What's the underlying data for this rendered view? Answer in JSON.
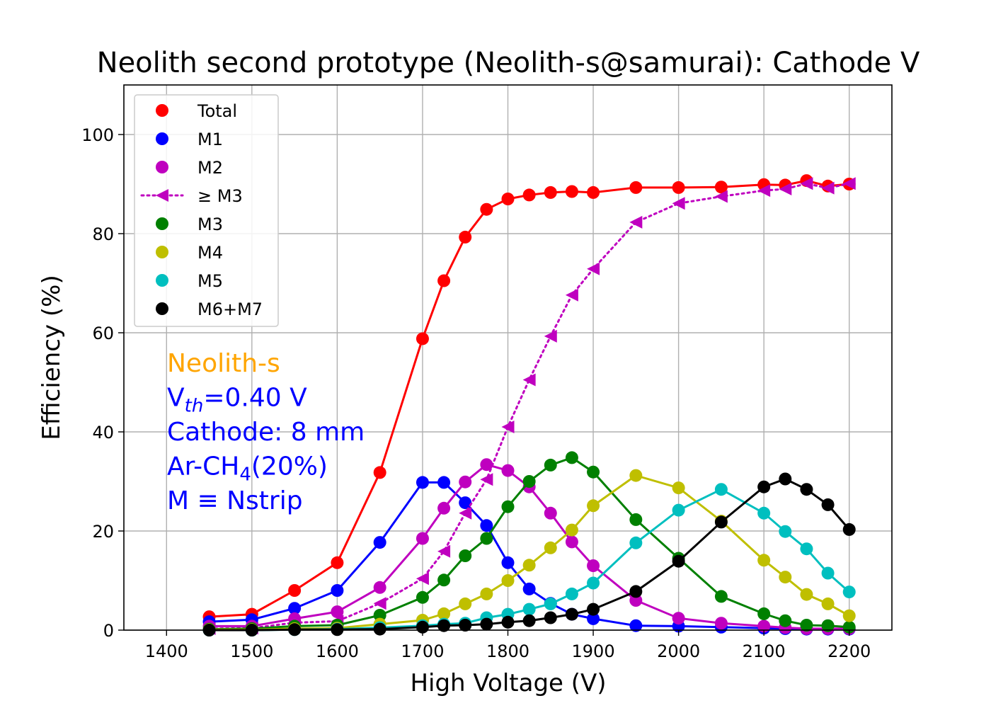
{
  "chart_data": {
    "type": "line",
    "title": "Neolith second prototype (Neolith-s@samurai): Cathode V",
    "xlabel": "High Voltage (V)",
    "ylabel": "Efficiency (%)",
    "xlim": [
      1350,
      2250
    ],
    "ylim": [
      0,
      110
    ],
    "xticks": [
      1400,
      1500,
      1600,
      1700,
      1800,
      1900,
      2000,
      2100,
      2200
    ],
    "yticks": [
      0,
      20,
      40,
      60,
      80,
      100
    ],
    "grid": true,
    "legend_position": "top-left",
    "x": [
      1450,
      1500,
      1550,
      1600,
      1650,
      1700,
      1725,
      1750,
      1775,
      1800,
      1825,
      1850,
      1875,
      1900,
      1950,
      2000,
      2050,
      2100,
      2125,
      2150,
      2175,
      2200
    ],
    "series": [
      {
        "name": "Total",
        "color": "#ff0000",
        "marker": "circle",
        "linestyle": "solid",
        "values": [
          2.7,
          3.2,
          8.0,
          13.6,
          31.8,
          58.8,
          70.5,
          79.3,
          84.9,
          87.0,
          87.8,
          88.3,
          88.5,
          88.3,
          89.3,
          89.3,
          89.4,
          89.9,
          89.8,
          90.7,
          89.6,
          90.0
        ]
      },
      {
        "name": "M1",
        "color": "#0000ff",
        "marker": "circle",
        "linestyle": "solid",
        "values": [
          1.7,
          2.1,
          4.4,
          8.0,
          17.7,
          29.8,
          29.8,
          25.7,
          21.1,
          13.6,
          8.3,
          5.4,
          3.2,
          2.3,
          0.9,
          0.8,
          0.6,
          0.4,
          0.3,
          0.2,
          0.2,
          0.2
        ]
      },
      {
        "name": "M2",
        "color": "#bf00bf",
        "marker": "circle",
        "linestyle": "solid",
        "values": [
          0.8,
          0.8,
          2.3,
          3.7,
          8.6,
          18.5,
          24.6,
          29.9,
          33.4,
          32.2,
          28.9,
          23.6,
          17.8,
          13.0,
          6.0,
          2.4,
          1.4,
          0.8,
          0.5,
          0.3,
          0.3,
          0.3
        ]
      },
      {
        "name": "≥ M3",
        "color": "#bf00bf",
        "marker": "triangle-left",
        "linestyle": "dotted",
        "values": [
          0.3,
          0.4,
          1.5,
          1.8,
          5.4,
          10.4,
          15.9,
          23.6,
          30.4,
          41.0,
          50.5,
          59.3,
          67.6,
          72.9,
          82.3,
          86.1,
          87.5,
          88.7,
          89.0,
          90.1,
          89.2,
          90.1
        ]
      },
      {
        "name": "M3",
        "color": "#008000",
        "marker": "circle",
        "linestyle": "solid",
        "values": [
          0.2,
          0.3,
          0.8,
          1.0,
          3.0,
          6.6,
          10.1,
          15.0,
          18.5,
          24.9,
          30.0,
          33.3,
          34.8,
          31.9,
          22.3,
          14.5,
          6.8,
          3.3,
          1.9,
          1.0,
          0.9,
          0.6
        ]
      },
      {
        "name": "M4",
        "color": "#bfbf00",
        "marker": "circle",
        "linestyle": "solid",
        "values": [
          0.1,
          0.1,
          0.3,
          0.4,
          1.2,
          2.0,
          3.3,
          5.3,
          7.3,
          10.0,
          13.1,
          16.6,
          20.2,
          25.1,
          31.2,
          28.7,
          22.0,
          14.1,
          10.7,
          7.2,
          5.3,
          2.9
        ]
      },
      {
        "name": "M5",
        "color": "#00bfbf",
        "marker": "circle",
        "linestyle": "solid",
        "values": [
          0.0,
          0.0,
          0.1,
          0.2,
          0.5,
          0.9,
          1.2,
          1.4,
          2.5,
          3.2,
          4.2,
          5.3,
          7.3,
          9.5,
          17.6,
          24.2,
          28.4,
          23.6,
          19.9,
          16.4,
          11.5,
          7.7
        ]
      },
      {
        "name": "M6+M7",
        "color": "#000000",
        "marker": "circle",
        "linestyle": "solid",
        "values": [
          0.0,
          0.0,
          0.1,
          0.1,
          0.2,
          0.6,
          0.9,
          1.0,
          1.2,
          1.6,
          1.9,
          2.5,
          3.2,
          4.2,
          7.8,
          13.9,
          21.8,
          28.9,
          30.5,
          28.4,
          25.3,
          20.3
        ]
      }
    ],
    "annotations": [
      {
        "parts": [
          {
            "text": "Neolith-s",
            "kind": "normal"
          }
        ],
        "color": "#ffa500"
      },
      {
        "parts": [
          {
            "text": "V",
            "kind": "normal"
          },
          {
            "text": "th",
            "kind": "sub-italic"
          },
          {
            "text": "=0.40 V",
            "kind": "normal"
          }
        ],
        "color": "#0000ff"
      },
      {
        "parts": [
          {
            "text": "Cathode: 8 mm",
            "kind": "normal"
          }
        ],
        "color": "#0000ff"
      },
      {
        "parts": [
          {
            "text": "Ar-CH",
            "kind": "normal"
          },
          {
            "text": "4",
            "kind": "sub"
          },
          {
            "text": "(20%)",
            "kind": "normal"
          }
        ],
        "color": "#0000ff"
      },
      {
        "parts": [
          {
            "text": "M ≡ Nstrip",
            "kind": "normal"
          }
        ],
        "color": "#0000ff"
      }
    ]
  }
}
